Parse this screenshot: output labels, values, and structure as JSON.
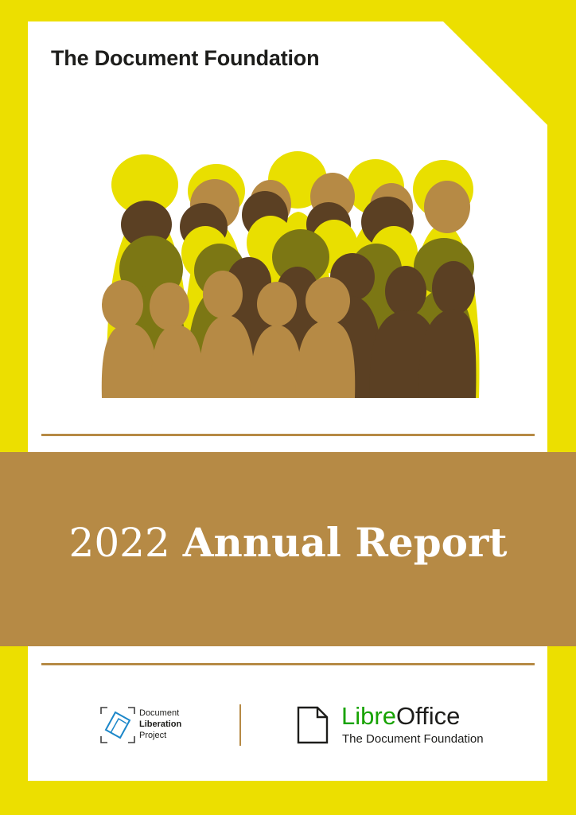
{
  "header": {
    "organization": "The Document Foundation"
  },
  "title": {
    "year": "2022",
    "rest": "Annual Report"
  },
  "footer": {
    "dlp_logo": {
      "line1": "Document",
      "line2": "Liberation",
      "line3": "Project"
    },
    "libreoffice_logo": {
      "name_part1": "Libre",
      "name_part2": "Office",
      "subtitle": "The Document Foundation"
    }
  },
  "colors": {
    "frame": "#ecdf00",
    "page": "#ffffff",
    "band": "#b68a45",
    "rule": "#b68a45",
    "libre_green": "#18a303",
    "people": [
      "#e9df00",
      "#b68a45",
      "#5b4023",
      "#7c7714"
    ]
  },
  "icons": {
    "illustration": "crowd-of-people-silhouettes",
    "dlp": "document-liberation-logo-icon",
    "libreoffice": "libreoffice-document-icon"
  }
}
